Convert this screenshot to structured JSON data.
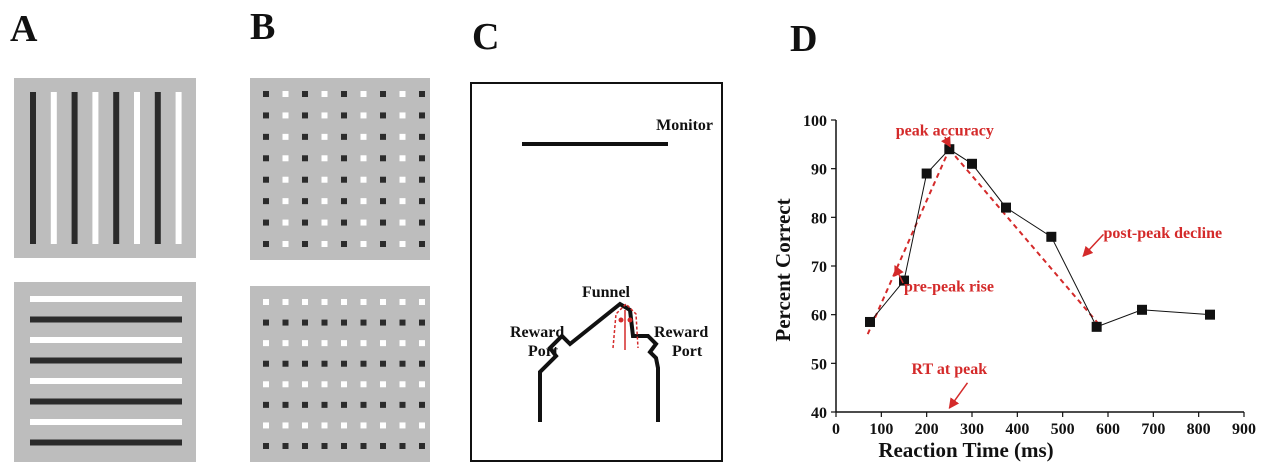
{
  "panels": {
    "a": {
      "letter": "A"
    },
    "b": {
      "letter": "B"
    },
    "c": {
      "letter": "C",
      "monitor_label": "Monitor",
      "funnel_label": "Funnel",
      "left_port_line1": "Reward",
      "left_port_line2": "Port",
      "right_port_line1": "Reward",
      "right_port_line2": "Port"
    },
    "d": {
      "letter": "D"
    }
  },
  "colors": {
    "stim_background": "#bdbdbd",
    "dark_element": "#2b2b2b",
    "light_element": "#ffffff",
    "annotation_red": "#d42a2a"
  },
  "chart_data": {
    "type": "line",
    "title": "",
    "xlabel": "Reaction Time (ms)",
    "ylabel": "Percent Correct",
    "xlim": [
      0,
      900
    ],
    "ylim": [
      40,
      100
    ],
    "xticks": [
      0,
      100,
      200,
      300,
      400,
      500,
      600,
      700,
      800,
      900
    ],
    "yticks": [
      40,
      50,
      60,
      70,
      80,
      90,
      100
    ],
    "grid": false,
    "series": [
      {
        "x": [
          75,
          150,
          200,
          250,
          300,
          375,
          475,
          575,
          675,
          825
        ],
        "y": [
          58.5,
          67,
          89,
          94,
          91,
          82,
          76,
          57.5,
          61,
          60
        ]
      }
    ],
    "trend_lines": [
      {
        "x": [
          70,
          250
        ],
        "y": [
          56,
          94
        ]
      },
      {
        "x": [
          250,
          580
        ],
        "y": [
          94,
          58
        ]
      }
    ],
    "annotations": [
      {
        "text": "peak accuracy",
        "x": 240,
        "y": 98
      },
      {
        "text": "pre-peak rise",
        "x": 150,
        "y": 66
      },
      {
        "text": "post-peak decline",
        "x": 590,
        "y": 77
      },
      {
        "text": "RT at peak",
        "x": 250,
        "y": 49
      }
    ]
  }
}
